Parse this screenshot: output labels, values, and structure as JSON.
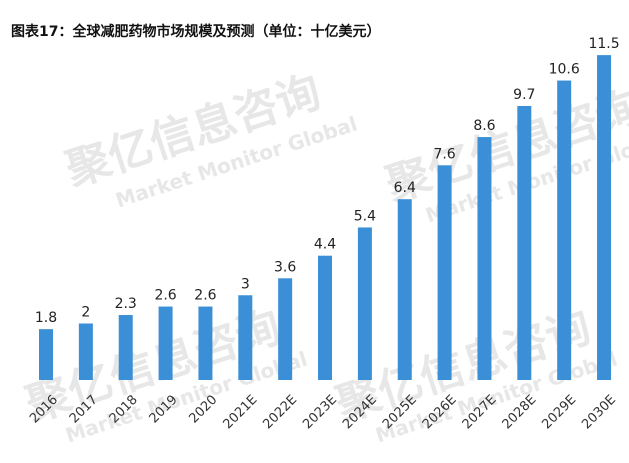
{
  "title": "图表17：全球减肥药物市场规模及预测（单位：十亿美元）",
  "watermark": {
    "cn": "聚亿信息咨询",
    "en": "Market Monitor Global"
  },
  "chart_data": {
    "type": "bar",
    "title": "图表17：全球减肥药物市场规模及预测（单位：十亿美元）",
    "xlabel": "",
    "ylabel": "",
    "ylim": [
      0,
      12
    ],
    "grid": false,
    "categories": [
      "2016",
      "2017",
      "2018",
      "2019",
      "2020",
      "2021E",
      "2022E",
      "2023E",
      "2024E",
      "2025E",
      "2026E",
      "2027E",
      "2028E",
      "2029E",
      "2030E"
    ],
    "values": [
      1.8,
      2,
      2.3,
      2.6,
      2.6,
      3,
      3.6,
      4.4,
      5.4,
      6.4,
      7.6,
      8.6,
      9.7,
      10.6,
      11.5
    ],
    "bar_color": "#3a8fd6"
  }
}
